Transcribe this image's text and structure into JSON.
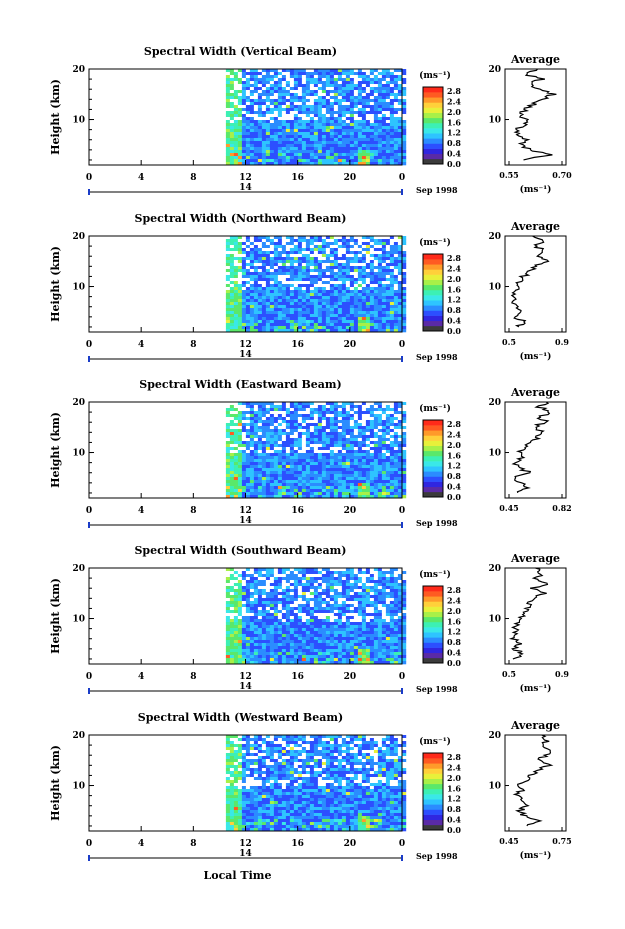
{
  "x_axis_label": "Local Time",
  "date_label": "Sep 1998",
  "day_label": "14",
  "unit_label": "(ms⁻¹)",
  "average_title": "Average",
  "colorbar": {
    "ticks": [
      "2.8",
      "2.4",
      "2.0",
      "1.6",
      "1.2",
      "0.8",
      "0.4",
      "0.0"
    ],
    "colors": [
      "#3b3b3b",
      "#5a2aa6",
      "#3026e0",
      "#2c4fff",
      "#2b8cff",
      "#2ec4ff",
      "#3ae8e8",
      "#3cf0b4",
      "#5ae86a",
      "#a8f048",
      "#e8f03a",
      "#ffd03a",
      "#ff9a2a",
      "#ff5a22",
      "#ff2a1a"
    ]
  },
  "chart_data": [
    {
      "type": "heatmap",
      "title": "Spectral Width (Vertical Beam)",
      "ylabel": "Height (km)",
      "x_ticks": [
        "0",
        "4",
        "8",
        "12",
        "16",
        "20",
        "0"
      ],
      "y_ticks": [
        "20",
        "10"
      ],
      "xlim": [
        0,
        24
      ],
      "ylim": [
        1,
        20
      ],
      "data_start_hour": 10.5,
      "profile": {
        "title": "Average",
        "xlabel": "(ms⁻¹)",
        "x_ticks": [
          "0.55",
          "0.70"
        ],
        "xlim": [
          0.55,
          0.7
        ],
        "heights": [
          2,
          3,
          4,
          5,
          6,
          7,
          8,
          9,
          10,
          11,
          12,
          13,
          14,
          15,
          16,
          17,
          18,
          19,
          20
        ],
        "values": [
          0.6,
          0.66,
          0.61,
          0.59,
          0.6,
          0.58,
          0.58,
          0.6,
          0.6,
          0.59,
          0.6,
          0.62,
          0.64,
          0.67,
          0.63,
          0.61,
          0.64,
          0.6,
          0.63
        ]
      }
    },
    {
      "type": "heatmap",
      "title": "Spectral Width (Northward Beam)",
      "ylabel": "Height (km)",
      "x_ticks": [
        "0",
        "4",
        "8",
        "12",
        "16",
        "20",
        "0"
      ],
      "y_ticks": [
        "20",
        "10"
      ],
      "xlim": [
        0,
        24
      ],
      "ylim": [
        1,
        20
      ],
      "data_start_hour": 10.5,
      "profile": {
        "title": "Average",
        "xlabel": "(ms⁻¹)",
        "x_ticks": [
          "0.5",
          "0.9"
        ],
        "xlim": [
          0.5,
          0.9
        ],
        "heights": [
          2,
          3,
          4,
          5,
          6,
          7,
          8,
          9,
          10,
          11,
          12,
          13,
          14,
          15,
          16,
          17,
          18,
          19,
          20
        ],
        "values": [
          0.58,
          0.63,
          0.56,
          0.6,
          0.57,
          0.56,
          0.55,
          0.57,
          0.58,
          0.59,
          0.62,
          0.66,
          0.7,
          0.78,
          0.72,
          0.76,
          0.7,
          0.74,
          0.68
        ]
      }
    },
    {
      "type": "heatmap",
      "title": "Spectral Width (Eastward Beam)",
      "ylabel": "Height (km)",
      "x_ticks": [
        "0",
        "4",
        "8",
        "12",
        "16",
        "20",
        "0"
      ],
      "y_ticks": [
        "20",
        "10"
      ],
      "xlim": [
        0,
        24
      ],
      "ylim": [
        1,
        20
      ],
      "data_start_hour": 10.5,
      "profile": {
        "title": "Average",
        "xlabel": "",
        "x_ticks": [
          "0.45",
          "0.82"
        ],
        "xlim": [
          0.45,
          0.82
        ],
        "heights": [
          2,
          3,
          4,
          5,
          6,
          7,
          8,
          9,
          10,
          11,
          12,
          13,
          14,
          15,
          16,
          17,
          18,
          19,
          20
        ],
        "values": [
          0.52,
          0.6,
          0.54,
          0.51,
          0.6,
          0.53,
          0.5,
          0.55,
          0.53,
          0.56,
          0.6,
          0.65,
          0.68,
          0.62,
          0.7,
          0.66,
          0.72,
          0.66,
          0.7
        ]
      }
    },
    {
      "type": "heatmap",
      "title": "Spectral Width (Southward Beam)",
      "ylabel": "Height (km)",
      "x_ticks": [
        "0",
        "4",
        "8",
        "12",
        "16",
        "20",
        "0"
      ],
      "y_ticks": [
        "20",
        "10"
      ],
      "xlim": [
        0,
        24
      ],
      "ylim": [
        1,
        20
      ],
      "data_start_hour": 10.5,
      "profile": {
        "title": "Average",
        "xlabel": "(ms⁻¹)",
        "x_ticks": [
          "0.5",
          "0.9"
        ],
        "xlim": [
          0.5,
          0.9
        ],
        "heights": [
          2,
          3,
          4,
          5,
          6,
          7,
          8,
          9,
          10,
          11,
          12,
          13,
          14,
          15,
          16,
          17,
          18,
          19,
          20
        ],
        "values": [
          0.56,
          0.62,
          0.56,
          0.6,
          0.55,
          0.58,
          0.56,
          0.58,
          0.6,
          0.62,
          0.65,
          0.66,
          0.7,
          0.75,
          0.68,
          0.78,
          0.7,
          0.74,
          0.7
        ]
      }
    },
    {
      "type": "heatmap",
      "title": "Spectral Width (Westward Beam)",
      "ylabel": "Height (km)",
      "x_ticks": [
        "0",
        "4",
        "8",
        "12",
        "16",
        "20",
        "0"
      ],
      "y_ticks": [
        "20",
        "10"
      ],
      "xlim": [
        0,
        24
      ],
      "ylim": [
        1,
        20
      ],
      "data_start_hour": 10.5,
      "profile": {
        "title": "Average",
        "xlabel": "(ms⁻¹)",
        "x_ticks": [
          "0.45",
          "0.75"
        ],
        "xlim": [
          0.45,
          0.75
        ],
        "heights": [
          2,
          3,
          4,
          5,
          6,
          7,
          8,
          9,
          10,
          11,
          12,
          13,
          14,
          15,
          16,
          17,
          18,
          19,
          20
        ],
        "values": [
          0.54,
          0.62,
          0.55,
          0.52,
          0.56,
          0.53,
          0.51,
          0.53,
          0.52,
          0.55,
          0.58,
          0.62,
          0.66,
          0.62,
          0.65,
          0.68,
          0.64,
          0.66,
          0.63
        ]
      }
    }
  ]
}
